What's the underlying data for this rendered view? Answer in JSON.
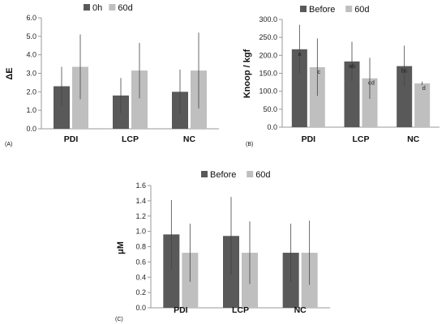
{
  "figure": {
    "colors": {
      "dark": "#595959",
      "light": "#bfbfbf",
      "axis": "#999999",
      "error": "#444444"
    }
  },
  "chart_data": [
    {
      "type": "bar",
      "panel_label": "(A)",
      "categories": [
        "PDI",
        "LCP",
        "NC"
      ],
      "ylabel": "ΔE",
      "ylim": [
        0,
        6
      ],
      "yticks": [
        "0.0",
        "1.0",
        "2.0",
        "3.0",
        "4.0",
        "5.0",
        "6.0"
      ],
      "ytick_values": [
        0,
        1,
        2,
        3,
        4,
        5,
        6
      ],
      "legend_position": "top",
      "grid": false,
      "series": [
        {
          "name": "0h",
          "color": "#595959",
          "values": [
            2.3,
            1.8,
            2.0
          ],
          "errors": [
            1.05,
            0.95,
            1.2
          ],
          "labels": [
            "",
            "",
            ""
          ]
        },
        {
          "name": "60d",
          "color": "#bfbfbf",
          "values": [
            3.35,
            3.15,
            3.15
          ],
          "errors": [
            1.75,
            1.5,
            2.05
          ],
          "labels": [
            "",
            "",
            ""
          ]
        }
      ]
    },
    {
      "type": "bar",
      "panel_label": "(B)",
      "categories": [
        "PDI",
        "LCP",
        "NC"
      ],
      "ylabel": "Knoop / kgf",
      "ylim": [
        0,
        300
      ],
      "yticks": [
        "0.0",
        "50.0",
        "100.0",
        "150.0",
        "200.0",
        "250.0",
        "300.0"
      ],
      "ytick_values": [
        0,
        50,
        100,
        150,
        200,
        250,
        300
      ],
      "legend_position": "top",
      "grid": false,
      "series": [
        {
          "name": "Before",
          "color": "#595959",
          "values": [
            217,
            183,
            170
          ],
          "errors": [
            68,
            55,
            57
          ],
          "labels": [
            "a",
            "ab",
            "bc"
          ]
        },
        {
          "name": "60d",
          "color": "#bfbfbf",
          "values": [
            167,
            136,
            122
          ],
          "errors": [
            80,
            57,
            5
          ],
          "labels": [
            "c",
            "cd",
            "d"
          ]
        }
      ]
    },
    {
      "type": "bar",
      "panel_label": "(C)",
      "categories": [
        "PDI",
        "LCP",
        "NC"
      ],
      "ylabel": "μM",
      "ylim": [
        0,
        1.6
      ],
      "yticks": [
        "0.0",
        "0.2",
        "0.4",
        "0.6",
        "0.8",
        "1.0",
        "1.2",
        "1.4",
        "1.6"
      ],
      "ytick_values": [
        0,
        0.2,
        0.4,
        0.6,
        0.8,
        1.0,
        1.2,
        1.4,
        1.6
      ],
      "legend_position": "top",
      "grid": false,
      "series": [
        {
          "name": "Before",
          "color": "#595959",
          "values": [
            0.96,
            0.94,
            0.72
          ],
          "errors": [
            0.45,
            0.51,
            0.38
          ],
          "labels": [
            "",
            "",
            ""
          ]
        },
        {
          "name": "60d",
          "color": "#bfbfbf",
          "values": [
            0.72,
            0.72,
            0.72
          ],
          "errors": [
            0.38,
            0.41,
            0.42
          ],
          "labels": [
            "",
            "",
            ""
          ]
        }
      ]
    }
  ]
}
